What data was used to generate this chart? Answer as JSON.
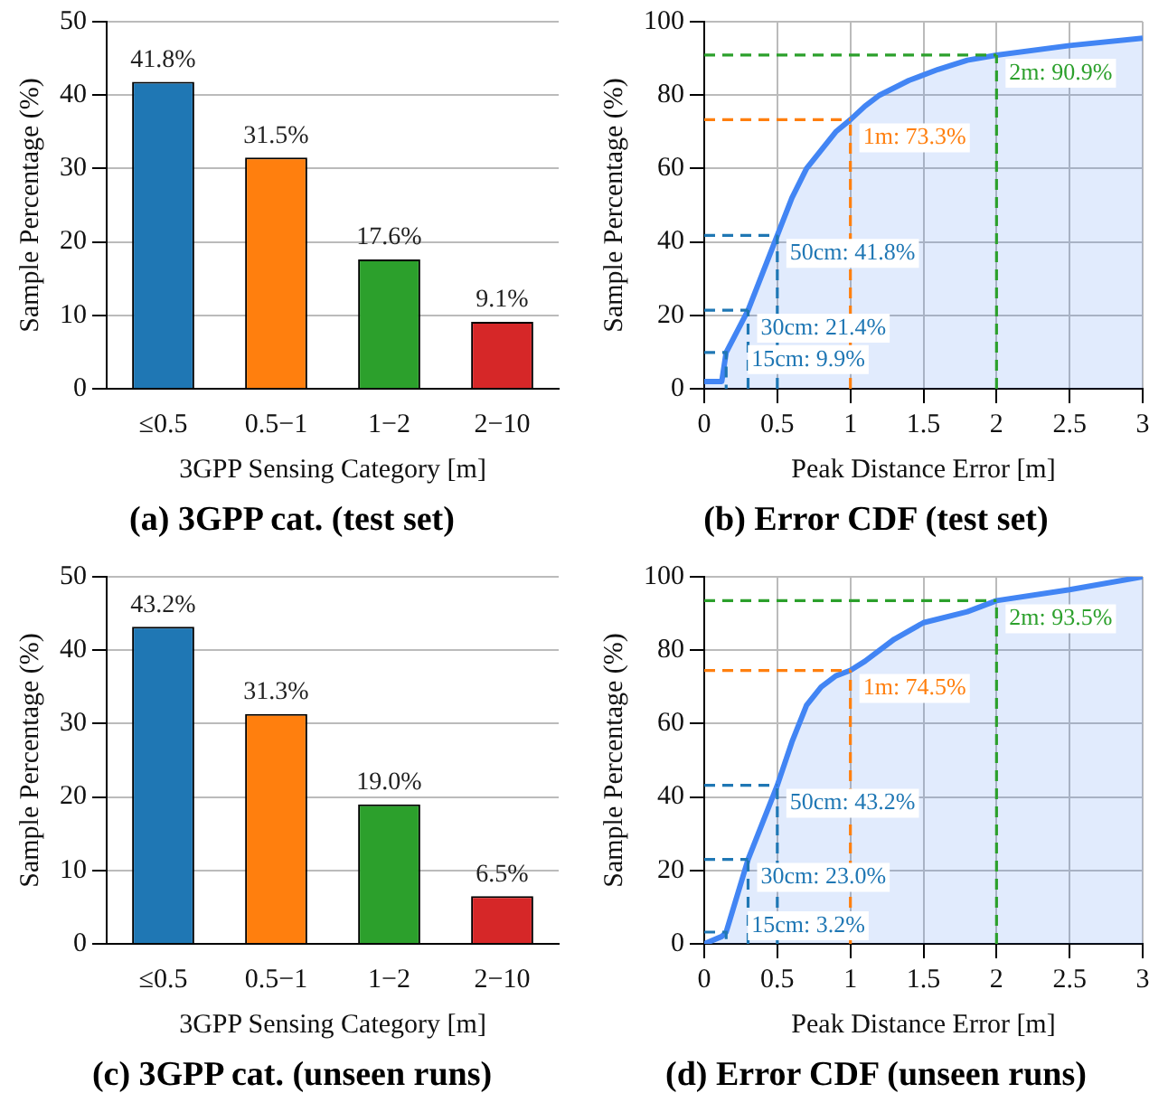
{
  "chart_data": [
    {
      "type": "bar",
      "title": "(a) 3GPP cat. (test set)",
      "xlabel": "3GPP Sensing Category [m]",
      "ylabel": "Sample Percentage (%)",
      "categories": [
        "≤0.5",
        "0.5−1",
        "1−2",
        "2−10"
      ],
      "values": [
        41.8,
        31.5,
        17.6,
        9.1
      ],
      "colors": [
        "#1f77b4",
        "#ff7f0e",
        "#2ca02c",
        "#d62728"
      ],
      "value_labels": [
        "41.8%",
        "31.5%",
        "17.6%",
        "9.1%"
      ],
      "ylim": [
        0,
        50
      ],
      "yticks": [
        0,
        10,
        20,
        30,
        40,
        50
      ],
      "grid": "y",
      "legend": false
    },
    {
      "type": "area",
      "title": "(b) Error CDF (test set)",
      "xlabel": "Peak Distance Error [m]",
      "ylabel": "Sample Percentage (%)",
      "series": [
        {
          "color": "#4285f4",
          "x": [
            0,
            0.12,
            0.15,
            0.3,
            0.5,
            0.6,
            0.7,
            0.8,
            0.9,
            1.0,
            1.1,
            1.2,
            1.4,
            1.6,
            1.8,
            2.0,
            2.5,
            3
          ],
          "values": [
            2,
            2,
            9.9,
            21.4,
            41.8,
            52,
            60,
            65,
            70,
            73.3,
            77,
            80,
            84,
            87,
            89.5,
            90.9,
            93.5,
            95.5
          ]
        }
      ],
      "xlim": [
        0,
        3
      ],
      "xticks": [
        0,
        0.5,
        1,
        1.5,
        2,
        2.5,
        3
      ],
      "ylim": [
        0,
        100
      ],
      "yticks": [
        0,
        20,
        40,
        60,
        80,
        100
      ],
      "grid": true,
      "legend": false,
      "annotations": [
        {
          "text": "15cm: 9.9%",
          "x": 0.15,
          "y": 9.9
        }
      ],
      "ref_lines": [
        {
          "axis": "x",
          "value": 0.3,
          "color": "#1f77b4",
          "line_style": "dashed"
        },
        {
          "axis": "y",
          "value": 21.4,
          "label": "30cm: 21.4%",
          "color": "#1f77b4",
          "line_style": "dashed"
        },
        {
          "axis": "x",
          "value": 0.5,
          "color": "#1f77b4",
          "line_style": "dashed"
        },
        {
          "axis": "y",
          "value": 41.8,
          "label": "50cm: 41.8%",
          "color": "#1f77b4",
          "line_style": "dashed"
        },
        {
          "axis": "x",
          "value": 1,
          "color": "#ff7f0e",
          "line_style": "dashed"
        },
        {
          "axis": "y",
          "value": 73.3,
          "label": "1m: 73.3%",
          "color": "#ff7f0e",
          "line_style": "dashed"
        },
        {
          "axis": "x",
          "value": 2,
          "color": "#2ca02c",
          "line_style": "dashed"
        },
        {
          "axis": "y",
          "value": 90.9,
          "label": "2m: 90.9%",
          "color": "#2ca02c",
          "line_style": "dashed"
        }
      ]
    },
    {
      "type": "bar",
      "title": "(c) 3GPP cat. (unseen runs)",
      "xlabel": "3GPP Sensing Category [m]",
      "ylabel": "Sample Percentage (%)",
      "categories": [
        "≤0.5",
        "0.5−1",
        "1−2",
        "2−10"
      ],
      "values": [
        43.2,
        31.3,
        19.0,
        6.5
      ],
      "colors": [
        "#1f77b4",
        "#ff7f0e",
        "#2ca02c",
        "#d62728"
      ],
      "value_labels": [
        "43.2%",
        "31.3%",
        "19.0%",
        "6.5%"
      ],
      "ylim": [
        0,
        50
      ],
      "yticks": [
        0,
        10,
        20,
        30,
        40,
        50
      ],
      "grid": "y",
      "legend": false
    },
    {
      "type": "area",
      "title": "(d) Error CDF (unseen runs)",
      "xlabel": "Peak Distance Error [m]",
      "ylabel": "Sample Percentage (%)",
      "series": [
        {
          "color": "#4285f4",
          "x": [
            0,
            0.12,
            0.15,
            0.3,
            0.5,
            0.6,
            0.7,
            0.8,
            0.9,
            1.0,
            1.1,
            1.3,
            1.5,
            1.8,
            2.0,
            2.5,
            3
          ],
          "values": [
            0,
            2,
            3.2,
            23.0,
            43.2,
            55,
            65,
            70,
            73,
            74.5,
            77,
            83,
            87.5,
            90.5,
            93.5,
            96.5,
            100
          ]
        }
      ],
      "xlim": [
        0,
        3
      ],
      "xticks": [
        0,
        0.5,
        1,
        1.5,
        2,
        2.5,
        3
      ],
      "ylim": [
        0,
        100
      ],
      "yticks": [
        0,
        20,
        40,
        60,
        80,
        100
      ],
      "grid": true,
      "legend": false,
      "annotations": [
        {
          "text": "15cm: 3.2%",
          "x": 0.15,
          "y": 3.2
        }
      ],
      "ref_lines": [
        {
          "axis": "x",
          "value": 0.3,
          "color": "#1f77b4",
          "line_style": "dashed"
        },
        {
          "axis": "y",
          "value": 23.0,
          "label": "30cm: 23.0%",
          "color": "#1f77b4",
          "line_style": "dashed"
        },
        {
          "axis": "x",
          "value": 0.5,
          "color": "#1f77b4",
          "line_style": "dashed"
        },
        {
          "axis": "y",
          "value": 43.2,
          "label": "50cm: 43.2%",
          "color": "#1f77b4",
          "line_style": "dashed"
        },
        {
          "axis": "x",
          "value": 1,
          "color": "#ff7f0e",
          "line_style": "dashed"
        },
        {
          "axis": "y",
          "value": 74.5,
          "label": "1m: 74.5%",
          "color": "#ff7f0e",
          "line_style": "dashed"
        },
        {
          "axis": "x",
          "value": 2,
          "color": "#2ca02c",
          "line_style": "dashed"
        },
        {
          "axis": "y",
          "value": 93.5,
          "label": "2m: 93.5%",
          "color": "#2ca02c",
          "line_style": "dashed"
        }
      ]
    }
  ]
}
